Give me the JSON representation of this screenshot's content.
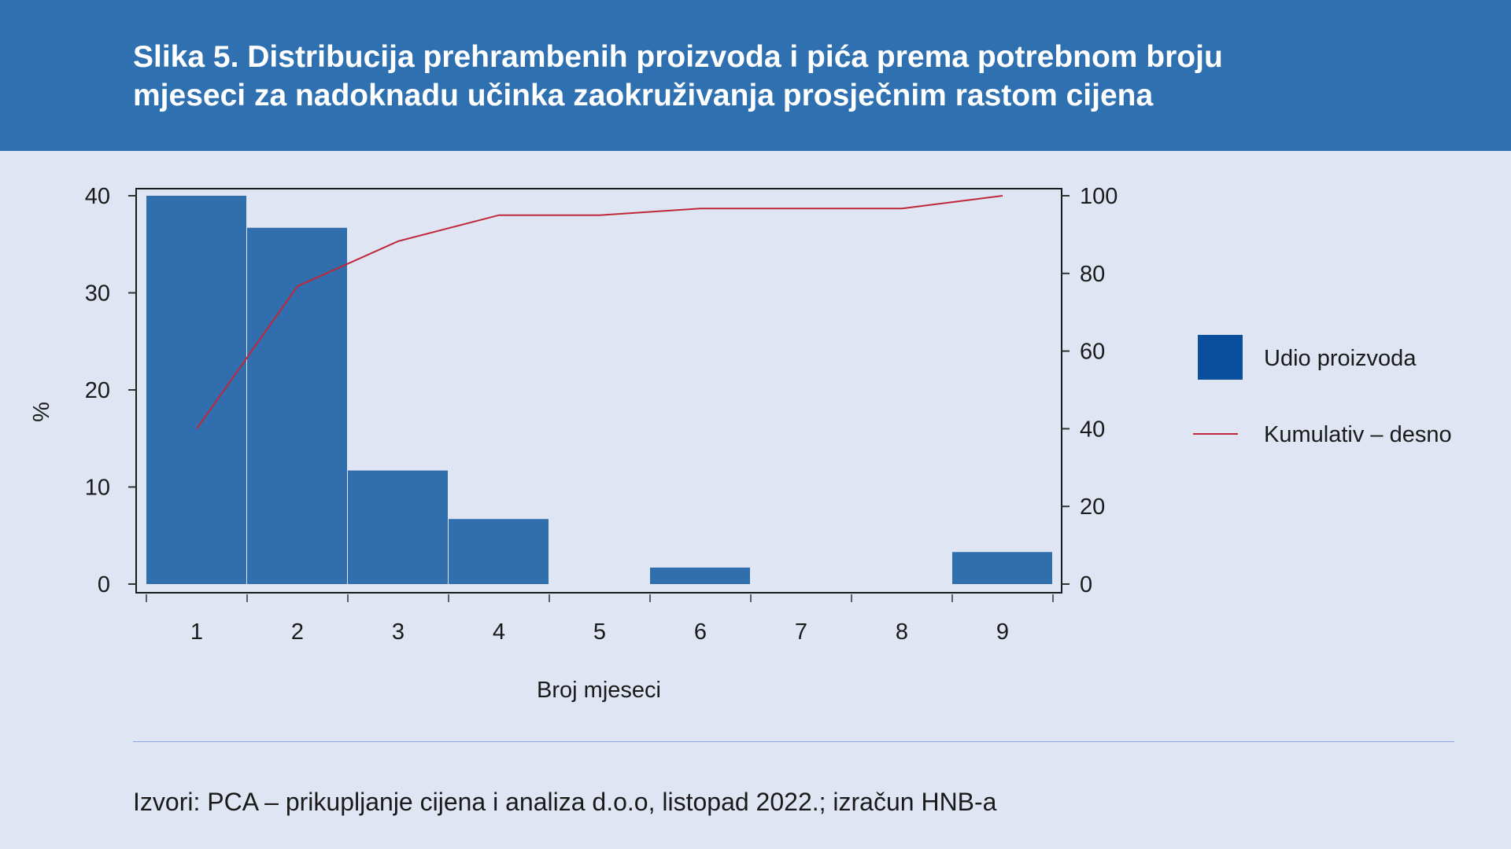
{
  "title_line1": "Slika 5. Distribucija prehrambenih proizvoda i pića prema potrebnom broju",
  "title_line2": "mjeseci za nadoknadu učinka zaokruživanja prosječnim rastom cijena",
  "source": "Izvori: PCA – prikupljanje cijena i analiza d.o.o, listopad 2022.; izračun HNB-a",
  "colors": {
    "header": "#2f70b1",
    "bar": "#306eae",
    "line": "#c0283a",
    "background": "#dfe5f3"
  },
  "chart_data": {
    "type": "bar",
    "categories": [
      "1",
      "2",
      "3",
      "4",
      "5",
      "6",
      "7",
      "8",
      "9"
    ],
    "series": [
      {
        "name": "Udio proizvoda",
        "type": "bar",
        "axis": "left",
        "values": [
          40,
          36.7,
          11.7,
          6.7,
          0,
          1.7,
          0,
          0,
          3.3
        ]
      },
      {
        "name": "Kumulativ – desno",
        "type": "line",
        "axis": "right",
        "values": [
          40,
          76.7,
          88.3,
          95,
          95,
          96.7,
          96.7,
          96.7,
          100
        ]
      }
    ],
    "xlabel": "Broj mjeseci",
    "ylabel": "%",
    "ylim": [
      0,
      40
    ],
    "yticks": [
      "0",
      "10",
      "20",
      "30",
      "40"
    ],
    "y2lim": [
      0,
      100
    ],
    "y2ticks": [
      "0",
      "20",
      "40",
      "60",
      "80",
      "100"
    ],
    "legend_position": "right",
    "grid": false
  }
}
